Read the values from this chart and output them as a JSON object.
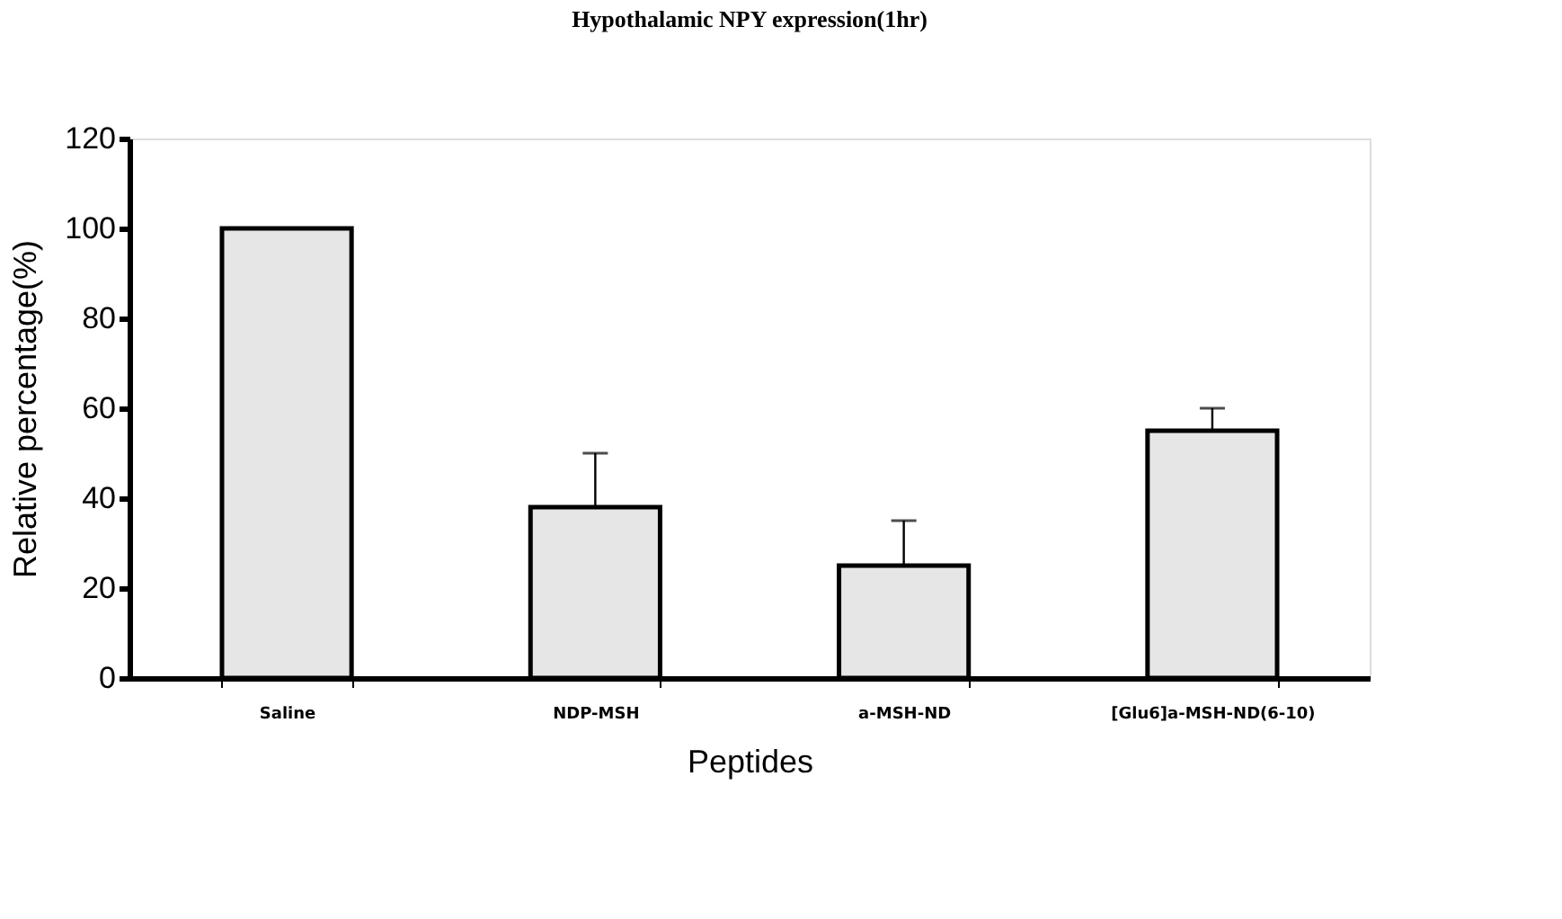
{
  "chart_data": {
    "type": "bar",
    "title": "Hypothalamic NPY expression(1hr)",
    "xlabel": "Peptides",
    "ylabel": "Relative percentage(%)",
    "categories": [
      "Saline",
      "NDP-MSH",
      "a-MSH-ND",
      "[Glu6]a-MSH-ND(6-10)"
    ],
    "values": [
      100,
      38,
      25,
      55
    ],
    "color": "#e6e6e6",
    "errors": [
      null,
      [
        38,
        50
      ],
      [
        25,
        35
      ],
      [
        55,
        60
      ]
    ],
    "ylim": [
      0,
      120
    ],
    "yticks": [
      0,
      20,
      40,
      60,
      80,
      100,
      120
    ],
    "grid": false
  }
}
